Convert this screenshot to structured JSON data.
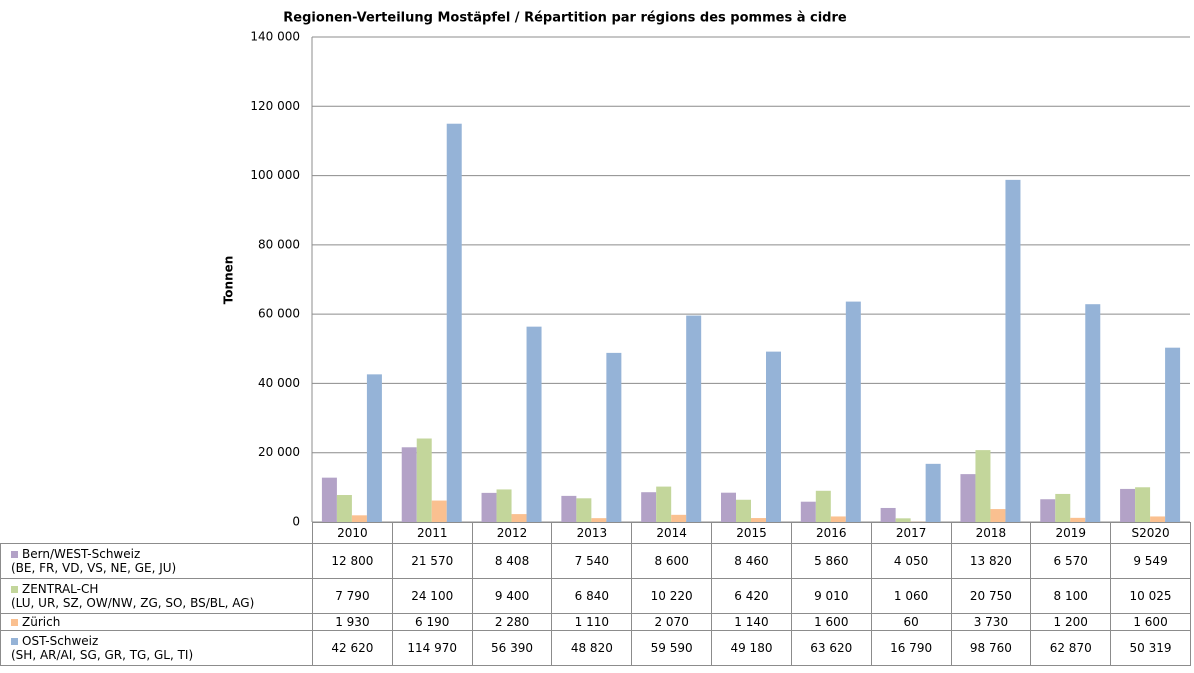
{
  "chart_data": {
    "type": "bar",
    "title": "Regionen-Verteilung Mostäpfel / Répartition par régions des pommes à cidre",
    "y_label": "Tonnen",
    "categories": [
      "2010",
      "2011",
      "2012",
      "2013",
      "2014",
      "2015",
      "2016",
      "2017",
      "2018",
      "2019",
      "S2020"
    ],
    "series": [
      {
        "name": "Bern/WEST-Schweiz\n(BE, FR, VD, VS, NE, GE, JU)",
        "color": "#b3a2c7",
        "values": [
          12800,
          21570,
          8408,
          7540,
          8600,
          8460,
          5860,
          4050,
          13820,
          6570,
          9549
        ],
        "value_labels": [
          "12 800",
          "21 570",
          "8 408",
          "7 540",
          "8 600",
          "8 460",
          "5 860",
          "4 050",
          "13 820",
          "6 570",
          "9 549"
        ]
      },
      {
        "name": "ZENTRAL-CH\n(LU, UR, SZ, OW/NW, ZG, SO, BS/BL, AG)",
        "color": "#c3d69b",
        "values": [
          7790,
          24100,
          9400,
          6840,
          10220,
          6420,
          9010,
          1060,
          20750,
          8100,
          10025
        ],
        "value_labels": [
          "7 790",
          "24 100",
          "9 400",
          "6 840",
          "10 220",
          "6 420",
          "9 010",
          "1 060",
          "20 750",
          "8 100",
          "10 025"
        ]
      },
      {
        "name": "Zürich",
        "color": "#fac090",
        "values": [
          1930,
          6190,
          2280,
          1110,
          2070,
          1140,
          1600,
          60,
          3730,
          1200,
          1600
        ],
        "value_labels": [
          "1 930",
          "6 190",
          "2 280",
          "1 110",
          "2 070",
          "1 140",
          "1 600",
          "60",
          "3 730",
          "1 200",
          "1 600"
        ]
      },
      {
        "name": "OST-Schweiz\n(SH, AR/AI, SG, GR, TG, GL, TI)",
        "color": "#95b3d7",
        "values": [
          42620,
          114970,
          56390,
          48820,
          59590,
          49180,
          63620,
          16790,
          98760,
          62870,
          50319
        ],
        "value_labels": [
          "42 620",
          "114 970",
          "56 390",
          "48 820",
          "59 590",
          "49 180",
          "63 620",
          "16 790",
          "98 760",
          "62 870",
          "50 319"
        ]
      }
    ],
    "ylim": [
      0,
      140000
    ],
    "yticks": [
      0,
      {
        "value": 20000,
        "label": "20 000"
      },
      {
        "value": 40000,
        "label": "40 000"
      },
      {
        "value": 60000,
        "label": "60 000"
      },
      {
        "value": 80000,
        "label": "80 000"
      },
      {
        "value": 100000,
        "label": "100 000"
      },
      {
        "value": 120000,
        "label": "120 000"
      },
      {
        "value": 140000,
        "label": "140 000"
      }
    ],
    "grid": true
  }
}
